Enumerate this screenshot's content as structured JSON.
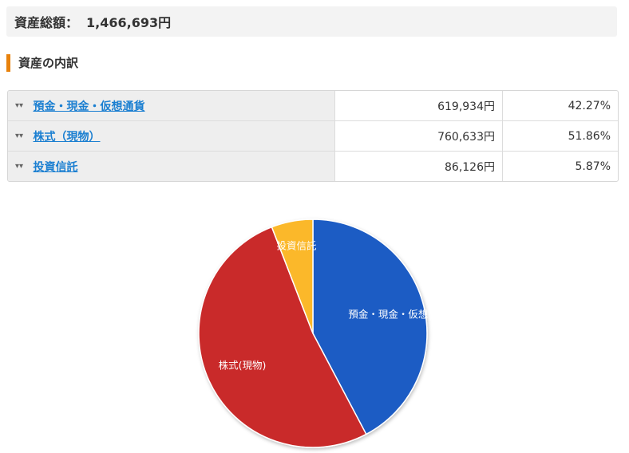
{
  "summary": {
    "total_label": "資産総額：",
    "total_value": "1,466,693円"
  },
  "section": {
    "title": "資産の内訳"
  },
  "breakdown": [
    {
      "label": "預金・現金・仮想通貨",
      "amount": "619,934円",
      "percent": "42.27%"
    },
    {
      "label": "株式（現物）",
      "amount": "760,633円",
      "percent": "51.86%"
    },
    {
      "label": "投資信託",
      "amount": "86,126円",
      "percent": "5.87%"
    }
  ],
  "icons": {
    "expand": "chevron-double-down-icon"
  },
  "chart_data": {
    "type": "pie",
    "slices": [
      {
        "label": "預金・現金・仮想",
        "value": 619934,
        "percent": 42.27,
        "color": "#1f5bc4"
      },
      {
        "label": "株式(現物)",
        "value": 760633,
        "percent": 51.86,
        "color": "#c9292a"
      },
      {
        "label": "投資信託",
        "value": 86126,
        "percent": 5.87,
        "color": "#fbb829"
      }
    ]
  }
}
